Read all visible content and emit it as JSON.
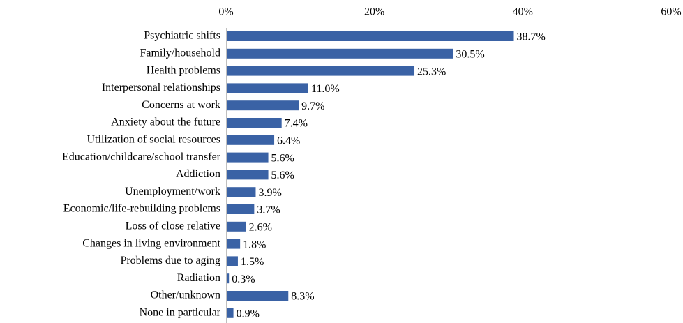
{
  "chart_data": {
    "type": "bar",
    "orientation": "horizontal",
    "color": "#3a62a5",
    "categories": [
      "Psychiatric shifts",
      "Family/household",
      "Health problems",
      "Interpersonal relationships",
      "Concerns at work",
      "Anxiety about the future",
      "Utilization of social resources",
      "Education/childcare/school transfer",
      "Addiction",
      "Unemployment/work",
      "Economic/life-rebuilding problems",
      "Loss of close relative",
      "Changes in living environment",
      "Problems due to aging",
      "Radiation",
      "Other/unknown",
      "None in particular"
    ],
    "values": [
      38.7,
      30.5,
      25.3,
      11.0,
      9.7,
      7.4,
      6.4,
      5.6,
      5.6,
      3.9,
      3.7,
      2.6,
      1.8,
      1.5,
      0.3,
      8.3,
      0.9
    ],
    "value_labels": [
      "38.7%",
      "30.5%",
      "25.3%",
      "11.0%",
      "9.7%",
      "7.4%",
      "6.4%",
      "5.6%",
      "5.6%",
      "3.9%",
      "3.7%",
      "2.6%",
      "1.8%",
      "1.5%",
      "0.3%",
      "8.3%",
      "0.9%"
    ],
    "xlim": [
      0,
      60
    ],
    "xticks": [
      {
        "value": 0,
        "label": "0%"
      },
      {
        "value": 20,
        "label": "20%"
      },
      {
        "value": 40,
        "label": "40%"
      },
      {
        "value": 60,
        "label": "60%"
      }
    ],
    "grid": false
  }
}
